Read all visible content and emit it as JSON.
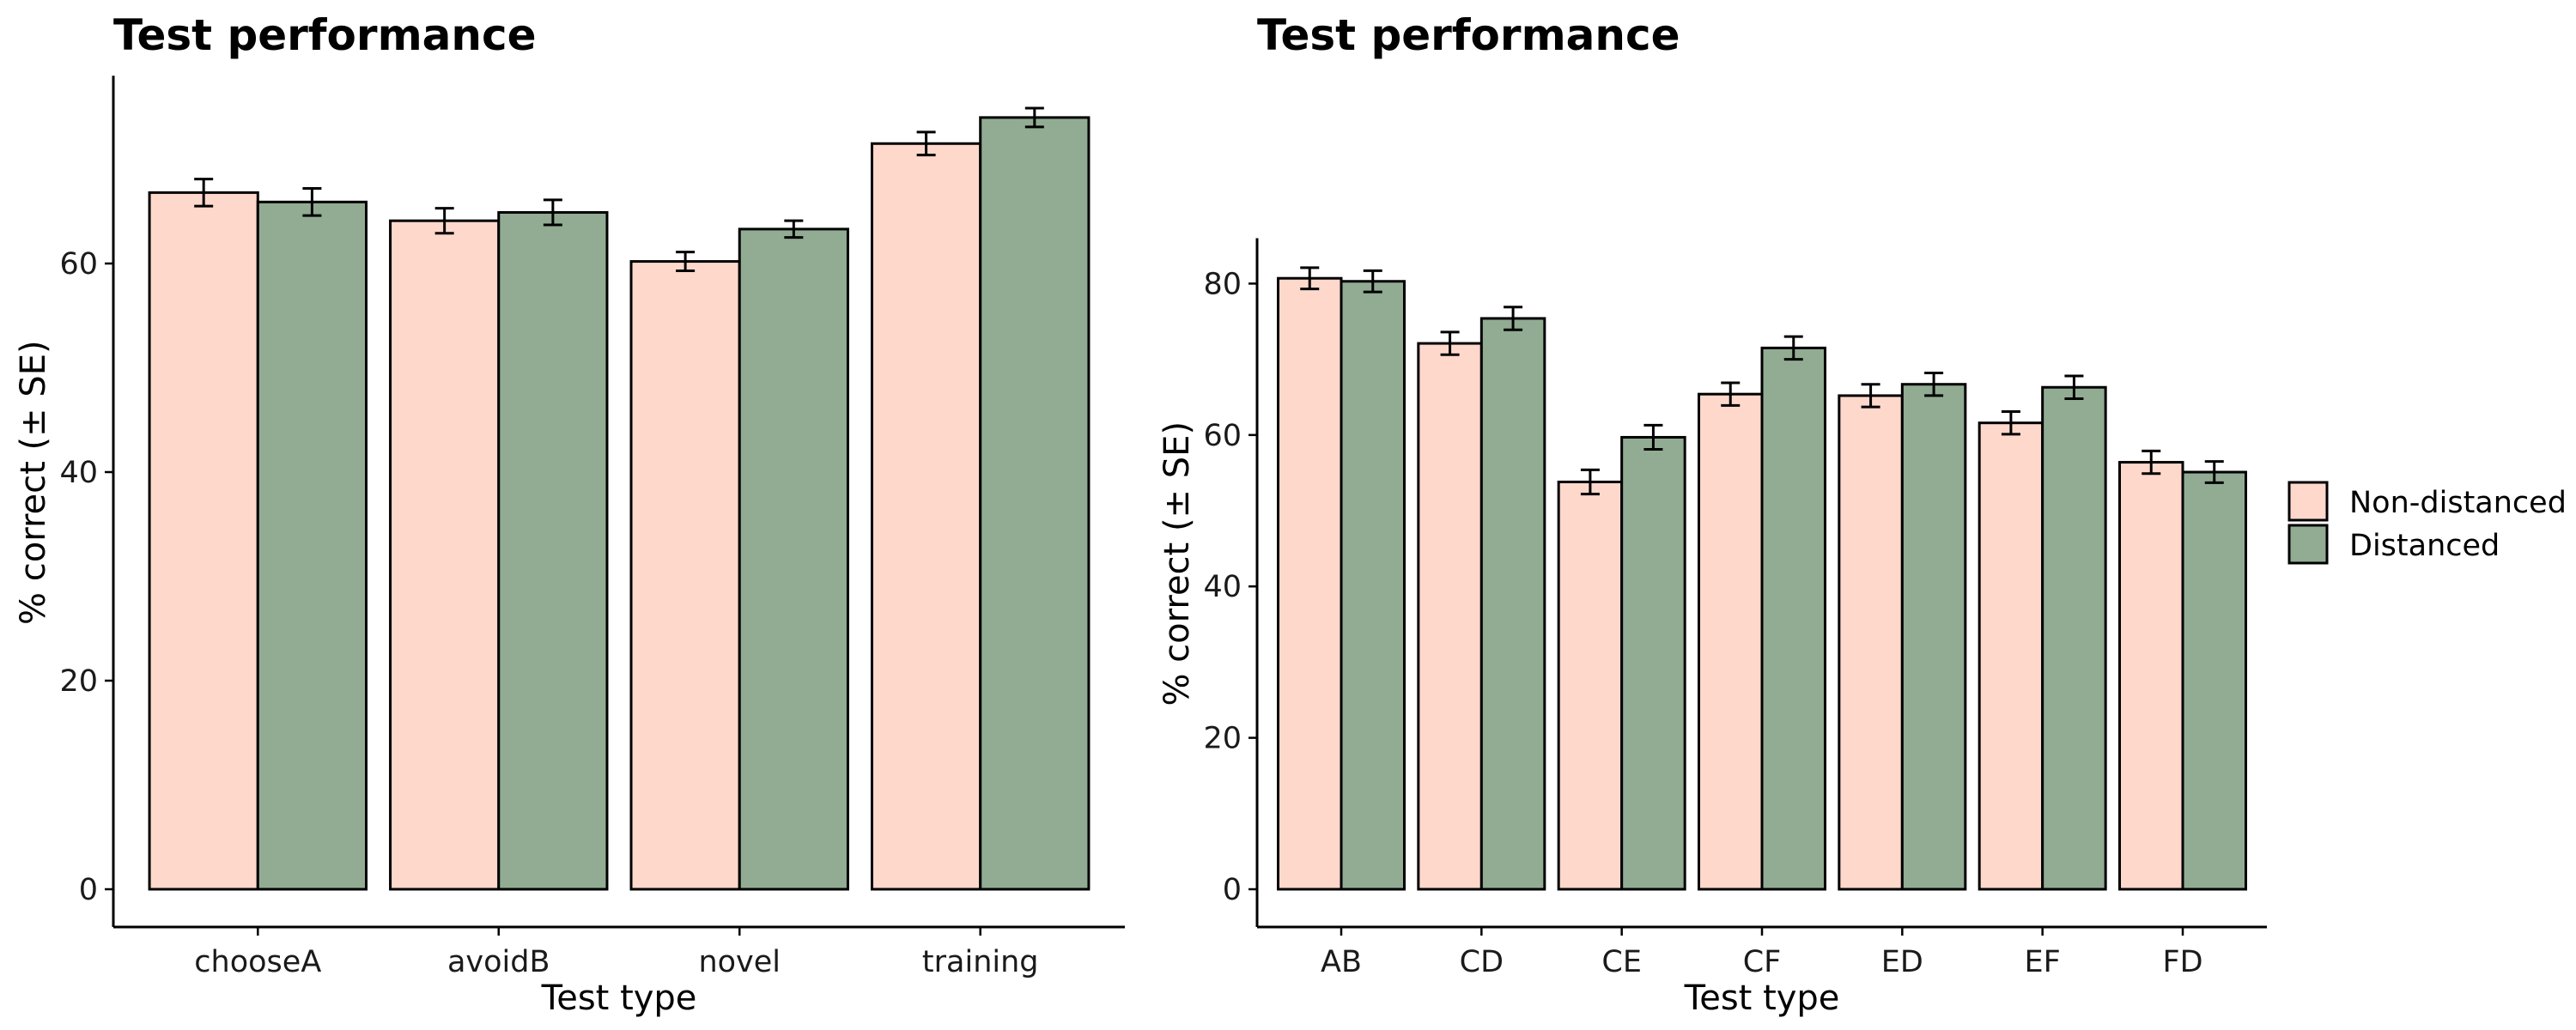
{
  "colors": {
    "non_distanced": "#FFD8CC",
    "distanced": "#91AC93",
    "outline": "#000000"
  },
  "legend": {
    "placement": "right",
    "entries": [
      {
        "name": "Non-distanced",
        "color": "#FFD8CC"
      },
      {
        "name": "Distanced",
        "color": "#91AC93"
      }
    ]
  },
  "chart_data": [
    {
      "type": "bar",
      "title": "Test performance",
      "xlabel": "Test type",
      "ylabel": "% correct (± SE)",
      "ylim": [
        0,
        78
      ],
      "yticks": [
        0,
        20,
        40,
        60
      ],
      "grid": false,
      "categories": [
        "chooseA",
        "avoidB",
        "novel",
        "training"
      ],
      "series": [
        {
          "name": "Non-distanced",
          "color": "#FFD8CC",
          "values": [
            66.8,
            64.1,
            60.2,
            71.5
          ],
          "se": [
            1.3,
            1.2,
            0.9,
            1.1
          ]
        },
        {
          "name": "Distanced",
          "color": "#91AC93",
          "values": [
            65.9,
            64.9,
            63.3,
            74.0
          ],
          "se": [
            1.3,
            1.2,
            0.8,
            0.9
          ]
        }
      ]
    },
    {
      "type": "bar",
      "title": "Test performance",
      "xlabel": "Test type",
      "ylabel": "% correct (± SE)",
      "ylim": [
        0,
        86
      ],
      "yticks": [
        0,
        20,
        40,
        60,
        80
      ],
      "grid": false,
      "categories": [
        "AB",
        "CD",
        "CE",
        "CF",
        "ED",
        "EF",
        "FD"
      ],
      "series": [
        {
          "name": "Non-distanced",
          "color": "#FFD8CC",
          "values": [
            80.7,
            72.1,
            53.8,
            65.4,
            65.2,
            61.6,
            56.4
          ],
          "se": [
            1.4,
            1.5,
            1.6,
            1.5,
            1.5,
            1.5,
            1.5
          ]
        },
        {
          "name": "Distanced",
          "color": "#91AC93",
          "values": [
            80.3,
            75.4,
            59.7,
            71.5,
            66.7,
            66.3,
            55.1
          ],
          "se": [
            1.4,
            1.5,
            1.6,
            1.5,
            1.5,
            1.5,
            1.4
          ]
        }
      ]
    }
  ]
}
